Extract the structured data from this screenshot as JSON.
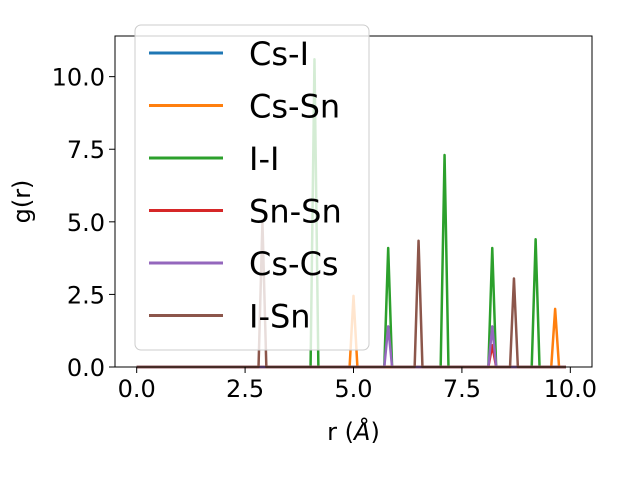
{
  "chart_data": {
    "type": "line",
    "xlabel": "r (",
    "xlabel_unit": "Å",
    "xlabel_close": ")",
    "ylabel": "g(r)",
    "xlim": [
      -0.5,
      10.5
    ],
    "ylim": [
      0,
      11.4
    ],
    "xticks": [
      0.0,
      2.5,
      5.0,
      7.5,
      10.0
    ],
    "xtick_labels": [
      "0.0",
      "2.5",
      "5.0",
      "7.5",
      "10.0"
    ],
    "yticks": [
      0.0,
      2.5,
      5.0,
      7.5,
      10.0
    ],
    "ytick_labels": [
      "0.0",
      "2.5",
      "5.0",
      "7.5",
      "10.0"
    ],
    "legend_position": "top-left",
    "grid": false,
    "series": [
      {
        "name": "Cs-I",
        "color": "#1f77b4",
        "peaks": []
      },
      {
        "name": "Cs-Sn",
        "color": "#ff7f0e",
        "peaks": [
          {
            "x": 5.0,
            "y": 2.45
          },
          {
            "x": 9.65,
            "y": 2.0
          }
        ]
      },
      {
        "name": "I-I",
        "color": "#2ca02c",
        "peaks": [
          {
            "x": 4.1,
            "y": 10.6
          },
          {
            "x": 5.8,
            "y": 4.1
          },
          {
            "x": 7.1,
            "y": 7.3
          },
          {
            "x": 8.2,
            "y": 4.1
          },
          {
            "x": 9.2,
            "y": 4.4
          }
        ]
      },
      {
        "name": "Sn-Sn",
        "color": "#d62728",
        "peaks": [
          {
            "x": 8.2,
            "y": 0.75
          }
        ]
      },
      {
        "name": "Cs-Cs",
        "color": "#9467bd",
        "peaks": [
          {
            "x": 5.8,
            "y": 1.4
          },
          {
            "x": 8.2,
            "y": 1.4
          }
        ]
      },
      {
        "name": "I-Sn",
        "color": "#8c564b",
        "peaks": [
          {
            "x": 2.9,
            "y": 5.0
          },
          {
            "x": 6.5,
            "y": 4.35
          },
          {
            "x": 8.7,
            "y": 3.05
          }
        ]
      }
    ]
  }
}
